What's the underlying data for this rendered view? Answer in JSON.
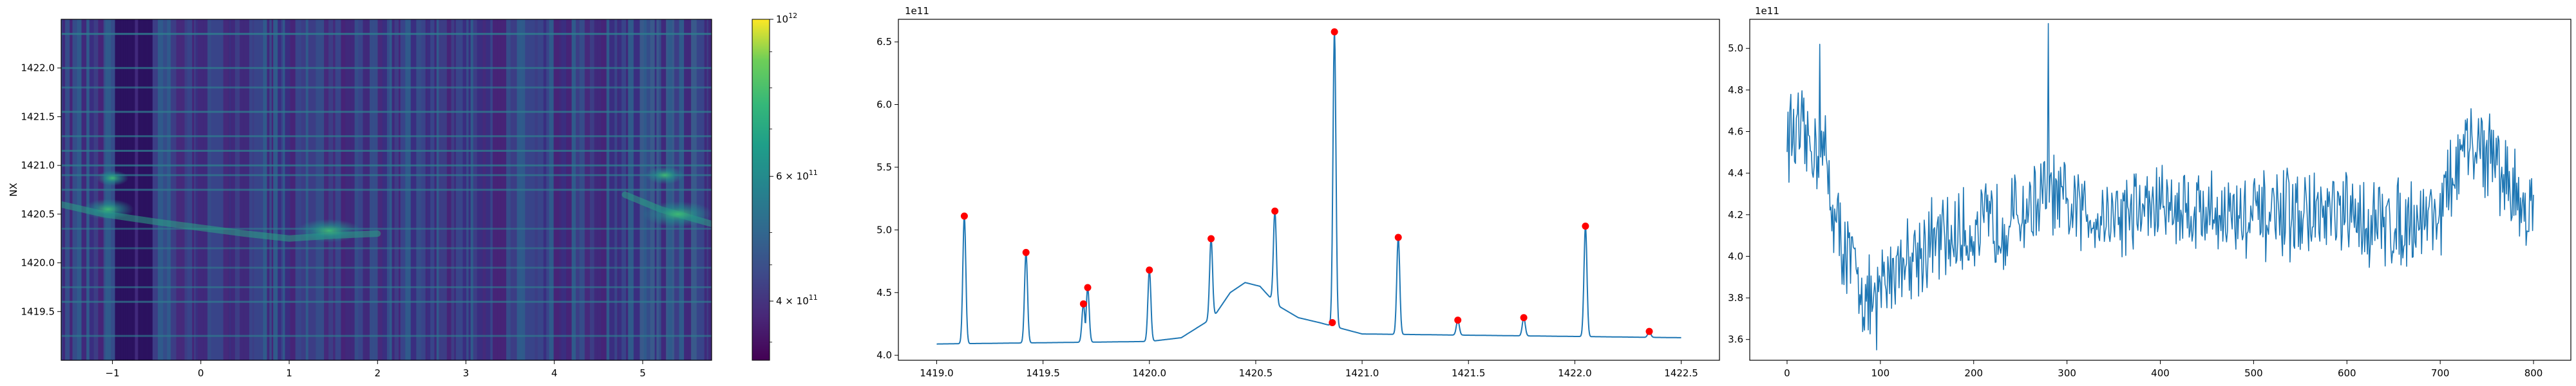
{
  "chart_data": [
    {
      "type": "heatmap",
      "ylabel": "NX",
      "xlabel": "",
      "xlim": [
        -1.58,
        5.78
      ],
      "ylim": [
        1419.0,
        1422.5
      ],
      "xticks": [
        -1,
        0,
        1,
        2,
        3,
        4,
        5
      ],
      "xtick_labels": [
        "−1",
        "0",
        "1",
        "2",
        "3",
        "4",
        "5"
      ],
      "yticks": [
        1419.5,
        1420.0,
        1420.5,
        1421.0,
        1421.5,
        1422.0
      ],
      "ytick_labels": [
        "1419.5",
        "1420.0",
        "1420.5",
        "1421.0",
        "1421.5",
        "1422.0"
      ],
      "colorscale": "viridis",
      "colorbar": {
        "scale": "log",
        "range": [
          330000000000,
          1000000000000
        ],
        "ticks": [
          400000000000,
          600000000000,
          1000000000000
        ],
        "tick_labels": [
          {
            "base": "4 × 10",
            "exp": "11"
          },
          {
            "base": "6 × 10",
            "exp": "11"
          },
          {
            "base": "10",
            "exp": "12"
          }
        ]
      },
      "colors": {
        "low": "#440154",
        "mid": "#21918c",
        "high": "#fde725"
      }
    },
    {
      "type": "line",
      "offset_label": "1e11",
      "xlim": [
        1418.82,
        1422.68
      ],
      "ylim": [
        3.96,
        6.68
      ],
      "xticks": [
        1419.0,
        1419.5,
        1420.0,
        1420.5,
        1421.0,
        1421.5,
        1422.0,
        1422.5
      ],
      "xtick_labels": [
        "1419.0",
        "1419.5",
        "1420.0",
        "1420.5",
        "1421.0",
        "1421.5",
        "1422.0",
        "1422.5"
      ],
      "yticks": [
        4.0,
        4.5,
        5.0,
        5.5,
        6.0,
        6.5
      ],
      "ytick_labels": [
        "4.0",
        "4.5",
        "5.0",
        "5.5",
        "6.0",
        "6.5"
      ],
      "line_color": "#1f77b4",
      "marker_color": "#ff0000",
      "peaks": {
        "x": [
          1419.13,
          1419.42,
          1419.69,
          1419.71,
          1420.0,
          1420.29,
          1420.59,
          1420.86,
          1420.87,
          1421.17,
          1421.45,
          1421.76,
          1422.05,
          1422.35
        ],
        "y": [
          5.11,
          4.82,
          4.41,
          4.54,
          4.68,
          4.93,
          5.15,
          4.26,
          6.58,
          4.94,
          4.28,
          4.3,
          5.03,
          4.19
        ]
      },
      "baseline": {
        "x": [
          1419.0,
          1419.5,
          1420.0,
          1420.15,
          1420.3,
          1420.38,
          1420.45,
          1420.52,
          1420.6,
          1420.7,
          1420.8,
          1421.0,
          1421.5,
          1422.0,
          1422.5
        ],
        "y": [
          4.09,
          4.1,
          4.11,
          4.14,
          4.3,
          4.5,
          4.58,
          4.55,
          4.4,
          4.3,
          4.26,
          4.17,
          4.16,
          4.15,
          4.14
        ]
      }
    },
    {
      "type": "line",
      "offset_label": "1e11",
      "xlim": [
        -40,
        840
      ],
      "ylim": [
        3.5,
        5.14
      ],
      "xticks": [
        0,
        100,
        200,
        300,
        400,
        500,
        600,
        700,
        800
      ],
      "xtick_labels": [
        "0",
        "100",
        "200",
        "300",
        "400",
        "500",
        "600",
        "700",
        "800"
      ],
      "yticks": [
        3.6,
        3.8,
        4.0,
        4.2,
        4.4,
        4.6,
        4.8,
        5.0
      ],
      "ytick_labels": [
        "3.6",
        "3.8",
        "4.0",
        "4.2",
        "4.4",
        "4.6",
        "4.8",
        "5.0"
      ],
      "line_color": "#1f77b4",
      "trend": {
        "x": [
          0,
          40,
          50,
          60,
          75,
          90,
          100,
          120,
          150,
          200,
          250,
          280,
          300,
          350,
          400,
          450,
          500,
          550,
          600,
          650,
          700,
          720,
          740,
          760,
          780,
          800
        ],
        "y": [
          4.6,
          4.5,
          4.2,
          4.05,
          3.9,
          3.75,
          3.85,
          3.98,
          4.05,
          4.12,
          4.2,
          4.3,
          4.22,
          4.2,
          4.25,
          4.22,
          4.18,
          4.2,
          4.18,
          4.15,
          4.22,
          4.45,
          4.55,
          4.45,
          4.3,
          4.2
        ]
      },
      "spikes": {
        "x": [
          35,
          96,
          280
        ],
        "y": [
          5.02,
          3.55,
          5.12
        ]
      }
    }
  ]
}
